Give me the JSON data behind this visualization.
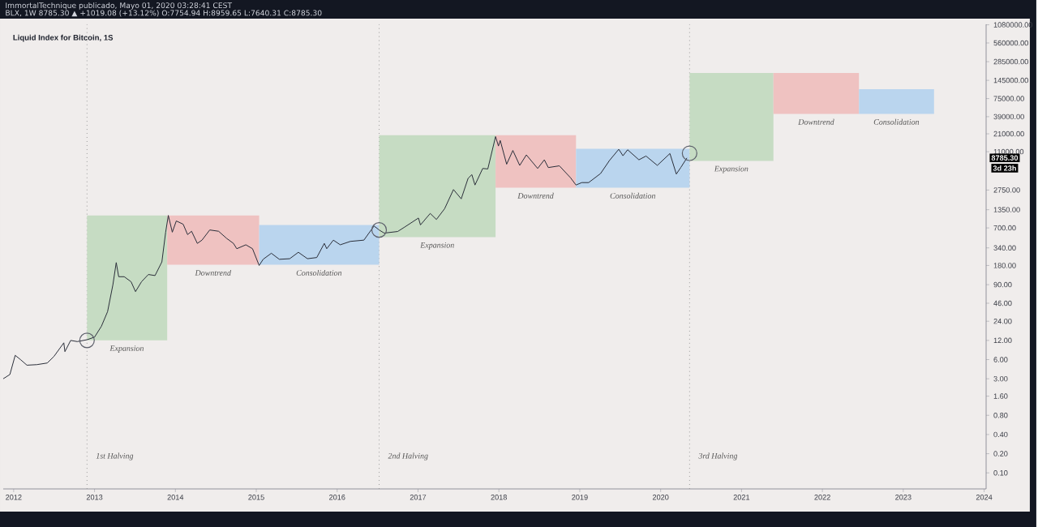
{
  "chart_data": {
    "type": "line",
    "title": "Liquid Index for Bitcoin, 1S",
    "annotations": [
      "ImmortalTechnique publicado, Mayo 01, 2020 03:28:41 CEST",
      "BLX, 1W 8785.30 ▲ +1019.08 (+13.12%) O:7754.94 H:8959.65 L:7640.31 C:8785.30",
      "8785.30",
      "3d 23h",
      {
        "text": "Expansion",
        "x": "2013-05-27",
        "y": 12
      },
      {
        "text": "Downtrend",
        "x": "2014-06-20",
        "y": 185
      },
      {
        "text": "Consolidation",
        "x": "2015-10-11",
        "y": 185
      },
      {
        "text": "Expansion",
        "x": "2017-03-29",
        "y": 500
      },
      {
        "text": "Downtrend",
        "x": "2018-06-16",
        "y": 3000
      },
      {
        "text": "Consolidation",
        "x": "2019-08-28",
        "y": 3000
      },
      {
        "text": "Expansion",
        "x": "2020-11-16",
        "y": 7900
      },
      {
        "text": "Downtrend",
        "x": "2021-12-04",
        "y": 43200
      },
      {
        "text": "Consolidation",
        "x": "2022-12-01",
        "y": 43200
      }
    ],
    "log": "y",
    "xlim": [
      "2011-11-15",
      "2024-01-10"
    ],
    "xticks": [
      "2012",
      "2013",
      "2014",
      "2015",
      "2016",
      "2017",
      "2018",
      "2019",
      "2020",
      "2021",
      "2022",
      "2023",
      "2024"
    ],
    "ylim": [
      0.056,
      1100000
    ],
    "yticks": [
      {
        "value": 0.1,
        "label": "0.10"
      },
      {
        "value": 0.2,
        "label": "0.20"
      },
      {
        "value": 0.4,
        "label": "0.40"
      },
      {
        "value": 0.8,
        "label": "0.80"
      },
      {
        "value": 1.6,
        "label": "1.60"
      },
      {
        "value": 3,
        "label": "3.00"
      },
      {
        "value": 6,
        "label": "6.00"
      },
      {
        "value": 12,
        "label": "12.00"
      },
      {
        "value": 24,
        "label": "24.00"
      },
      {
        "value": 46,
        "label": "46.00"
      },
      {
        "value": 90,
        "label": "90.00"
      },
      {
        "value": 180,
        "label": "180.00"
      },
      {
        "value": 340,
        "label": "340.00"
      },
      {
        "value": 700,
        "label": "700.00"
      },
      {
        "value": 1350,
        "label": "1350.00"
      },
      {
        "value": 2750,
        "label": "2750.00"
      },
      {
        "value": 11000,
        "label": "11000.00"
      },
      {
        "value": 21000,
        "label": "21000.00"
      },
      {
        "value": 39000,
        "label": "39000.00"
      },
      {
        "value": 75000,
        "label": "75000.00"
      },
      {
        "value": 145000,
        "label": "145000.00"
      },
      {
        "value": 285000,
        "label": "285000.00"
      },
      {
        "value": 560000,
        "label": "560000.00"
      },
      {
        "value": 1080000,
        "label": "1080000.00"
      }
    ],
    "ref_lines": [
      {
        "axis": "x",
        "value": "2012-11-28",
        "label": "1st Halving",
        "color": "#9a9a9a",
        "line_style": "dotted"
      },
      {
        "axis": "x",
        "value": "2016-07-09",
        "label": "2nd Halving",
        "color": "#9a9a9a",
        "line_style": "dotted"
      },
      {
        "axis": "x",
        "value": "2020-05-11",
        "label": "3rd Halving",
        "color": "#9a9a9a",
        "line_style": "dotted"
      }
    ],
    "series": [
      {
        "type": "area",
        "color": "#c6dcc3",
        "x": [
          "2012-11-28",
          "2013-11-25"
        ],
        "values": [
          null,
          null
        ],
        "lower": [
          12,
          12
        ],
        "upper": [
          1100,
          1100
        ]
      },
      {
        "type": "area",
        "color": "#efc2c1",
        "x": [
          "2013-11-25",
          "2015-01-14"
        ],
        "values": [
          null,
          null
        ],
        "lower": [
          185,
          185
        ],
        "upper": [
          1100,
          1100
        ]
      },
      {
        "type": "area",
        "color": "#bad5ee",
        "x": [
          "2015-01-14",
          "2016-07-09"
        ],
        "values": [
          null,
          null
        ],
        "lower": [
          185,
          185
        ],
        "upper": [
          780,
          780
        ]
      },
      {
        "type": "area",
        "color": "#c6dcc3",
        "x": [
          "2016-07-09",
          "2017-12-17"
        ],
        "values": [
          null,
          null
        ],
        "lower": [
          500,
          500
        ],
        "upper": [
          20000,
          20000
        ]
      },
      {
        "type": "area",
        "color": "#efc2c1",
        "x": [
          "2017-12-17",
          "2018-12-15"
        ],
        "values": [
          null,
          null
        ],
        "lower": [
          3000,
          3000
        ],
        "upper": [
          20000,
          20000
        ]
      },
      {
        "type": "area",
        "color": "#bad5ee",
        "x": [
          "2018-12-15",
          "2020-05-11"
        ],
        "values": [
          null,
          null
        ],
        "lower": [
          3000,
          3000
        ],
        "upper": [
          12200,
          12200
        ]
      },
      {
        "type": "area",
        "color": "#c6dcc3",
        "x": [
          "2020-05-11",
          "2021-05-25"
        ],
        "values": [
          null,
          null
        ],
        "lower": [
          7900,
          7900
        ],
        "upper": [
          189000,
          189000
        ]
      },
      {
        "type": "area",
        "color": "#efc2c1",
        "x": [
          "2021-05-25",
          "2022-06-15"
        ],
        "values": [
          null,
          null
        ],
        "lower": [
          43200,
          43200
        ],
        "upper": [
          189000,
          189000
        ]
      },
      {
        "type": "area",
        "color": "#bad5ee",
        "x": [
          "2022-06-15",
          "2023-05-20"
        ],
        "values": [
          null,
          null
        ],
        "lower": [
          43200,
          43200
        ],
        "upper": [
          105000,
          105000
        ]
      },
      {
        "color": "#2a2e39",
        "x": [
          "2011-11-15",
          "2011-12-15",
          "2012-01-08",
          "2012-02-01",
          "2012-03-01",
          "2012-04-15",
          "2012-06-01",
          "2012-07-01",
          "2012-08-15",
          "2012-08-20",
          "2012-09-15",
          "2012-10-15",
          "2012-11-28",
          "2013-01-01",
          "2013-02-01",
          "2013-03-01",
          "2013-03-25",
          "2013-04-09",
          "2013-04-20",
          "2013-05-15",
          "2013-06-15",
          "2013-07-05",
          "2013-08-01",
          "2013-09-01",
          "2013-10-01",
          "2013-11-01",
          "2013-11-18",
          "2013-11-30",
          "2013-12-18",
          "2014-01-05",
          "2014-02-05",
          "2014-02-25",
          "2014-03-15",
          "2014-04-10",
          "2014-05-01",
          "2014-06-05",
          "2014-07-15",
          "2014-08-20",
          "2014-09-20",
          "2014-10-05",
          "2014-11-15",
          "2014-12-15",
          "2015-01-14",
          "2015-02-01",
          "2015-03-10",
          "2015-04-15",
          "2015-06-01",
          "2015-07-10",
          "2015-08-20",
          "2015-10-01",
          "2015-11-04",
          "2015-11-15",
          "2015-12-15",
          "2016-01-15",
          "2016-03-01",
          "2016-05-01",
          "2016-06-16",
          "2016-07-09",
          "2016-08-01",
          "2016-10-01",
          "2016-11-01",
          "2017-01-03",
          "2017-01-12",
          "2017-02-25",
          "2017-03-25",
          "2017-05-01",
          "2017-06-10",
          "2017-07-15",
          "2017-08-15",
          "2017-09-01",
          "2017-09-15",
          "2017-10-20",
          "2017-11-12",
          "2017-12-17",
          "2017-12-30",
          "2018-01-07",
          "2018-02-05",
          "2018-03-05",
          "2018-04-05",
          "2018-05-05",
          "2018-06-25",
          "2018-07-25",
          "2018-08-12",
          "2018-10-01",
          "2018-11-20",
          "2018-12-15",
          "2019-01-10",
          "2019-02-10",
          "2019-04-05",
          "2019-05-15",
          "2019-06-26",
          "2019-07-15",
          "2019-08-05",
          "2019-09-25",
          "2019-10-27",
          "2019-12-17",
          "2020-02-12",
          "2020-03-12",
          "2020-04-01",
          "2020-04-29"
        ],
        "values": [
          3,
          3.5,
          7,
          6,
          4.9,
          5,
          5.3,
          6.7,
          11,
          8,
          12,
          11.5,
          12.3,
          13.5,
          20,
          34,
          90,
          200,
          120,
          120,
          100,
          70,
          100,
          130,
          125,
          205,
          600,
          1100,
          600,
          900,
          800,
          550,
          620,
          400,
          450,
          650,
          620,
          480,
          400,
          330,
          380,
          330,
          180,
          225,
          280,
          225,
          230,
          290,
          230,
          240,
          400,
          330,
          450,
          380,
          430,
          450,
          750,
          650,
          580,
          615,
          720,
          1000,
          780,
          1180,
          950,
          1400,
          2800,
          2000,
          4200,
          4800,
          3300,
          6000,
          5900,
          19000,
          13500,
          16500,
          7000,
          11500,
          6700,
          9800,
          6000,
          8200,
          6200,
          6600,
          4300,
          3300,
          3600,
          3600,
          5000,
          8000,
          12000,
          9500,
          11800,
          8200,
          9400,
          6700,
          10300,
          4900,
          6200,
          8785.3
        ]
      },
      {
        "type": "scatter",
        "marker": "circle",
        "color": "#5d606b",
        "x": [
          "2012-11-28",
          "2016-07-09",
          "2020-05-11"
        ],
        "values": [
          12,
          650,
          10400
        ]
      }
    ]
  }
}
